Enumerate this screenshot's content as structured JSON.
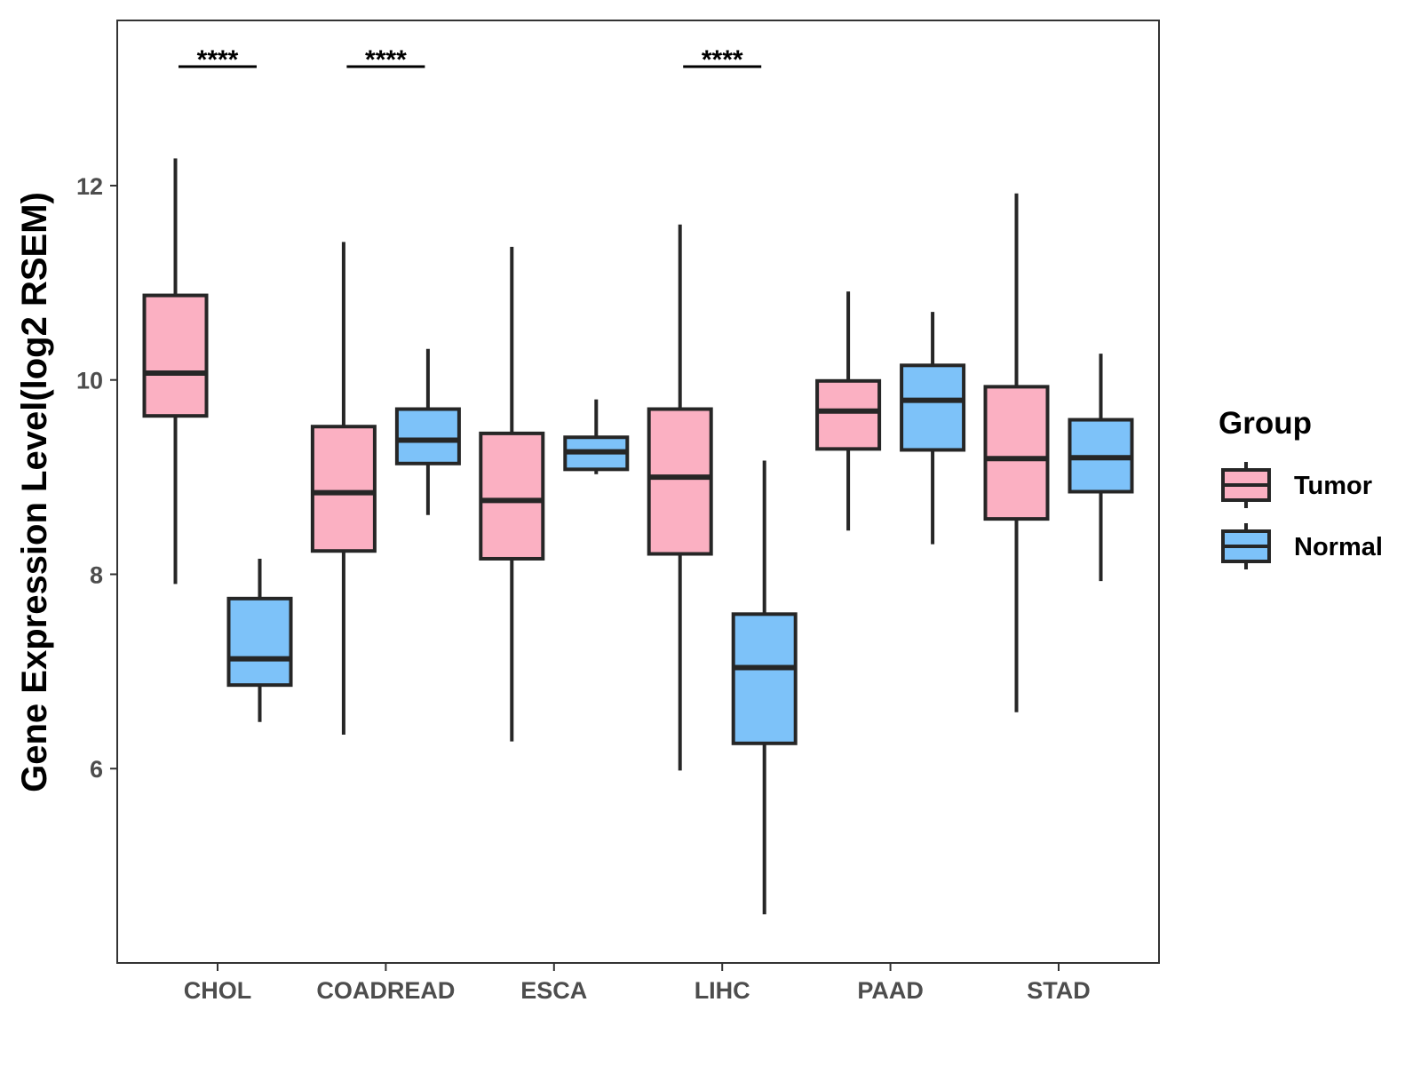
{
  "chart_data": {
    "type": "boxplot",
    "title": "",
    "xlabel": "",
    "ylabel": "Gene Expression Level(log2 RSEM)",
    "ylim": [
      4.0,
      13.7
    ],
    "yticks": [
      6,
      8,
      10,
      12
    ],
    "grid": false,
    "legend_position": "right",
    "categories": [
      "CHOL",
      "COADREAD",
      "ESCA",
      "LIHC",
      "PAAD",
      "STAD"
    ],
    "series": [
      {
        "name": "Tumor",
        "color": "#FBB0C2",
        "boxes": [
          {
            "whisker_low": 7.9,
            "q1": 9.63,
            "median": 10.07,
            "q3": 10.87,
            "whisker_high": 12.28
          },
          {
            "whisker_low": 6.35,
            "q1": 8.24,
            "median": 8.84,
            "q3": 9.52,
            "whisker_high": 11.42
          },
          {
            "whisker_low": 6.28,
            "q1": 8.16,
            "median": 8.76,
            "q3": 9.45,
            "whisker_high": 11.37
          },
          {
            "whisker_low": 5.98,
            "q1": 8.21,
            "median": 9.0,
            "q3": 9.7,
            "whisker_high": 11.6
          },
          {
            "whisker_low": 8.45,
            "q1": 9.29,
            "median": 9.68,
            "q3": 9.99,
            "whisker_high": 10.91
          },
          {
            "whisker_low": 6.58,
            "q1": 8.57,
            "median": 9.19,
            "q3": 9.93,
            "whisker_high": 11.92
          }
        ]
      },
      {
        "name": "Normal",
        "color": "#7DC2F9",
        "boxes": [
          {
            "whisker_low": 6.48,
            "q1": 6.86,
            "median": 7.13,
            "q3": 7.75,
            "whisker_high": 8.16
          },
          {
            "whisker_low": 8.61,
            "q1": 9.14,
            "median": 9.38,
            "q3": 9.7,
            "whisker_high": 10.32
          },
          {
            "whisker_low": 9.03,
            "q1": 9.08,
            "median": 9.26,
            "q3": 9.41,
            "whisker_high": 9.8
          },
          {
            "whisker_low": 4.5,
            "q1": 6.26,
            "median": 7.04,
            "q3": 7.59,
            "whisker_high": 9.17
          },
          {
            "whisker_low": 8.31,
            "q1": 9.28,
            "median": 9.79,
            "q3": 10.15,
            "whisker_high": 10.7
          },
          {
            "whisker_low": 7.93,
            "q1": 8.85,
            "median": 9.2,
            "q3": 9.59,
            "whisker_high": 10.27
          }
        ]
      }
    ],
    "annotations": [
      {
        "category": "CHOL",
        "label": "****"
      },
      {
        "category": "COADREAD",
        "label": "****"
      },
      {
        "category": "LIHC",
        "label": "****"
      }
    ],
    "legend": {
      "title": "Group",
      "entries": [
        "Tumor",
        "Normal"
      ]
    }
  }
}
